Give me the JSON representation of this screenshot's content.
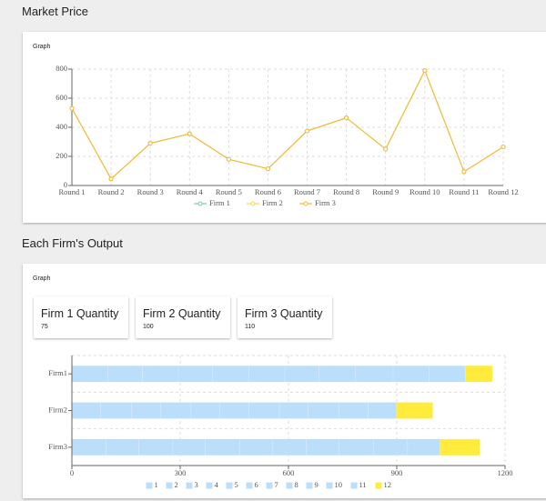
{
  "headings": [
    "Market Price",
    "Each Firm's Output"
  ],
  "graph_labels": [
    "Graph",
    "Graph"
  ],
  "quantity_cards": [
    {
      "title": "Firm 1 Quantity",
      "value": "75"
    },
    {
      "title": "Firm 2 Quantity",
      "value": "100"
    },
    {
      "title": "Firm 3 Quantity",
      "value": "110"
    }
  ],
  "chart_data": [
    {
      "type": "line",
      "categories": [
        "Round 1",
        "Round 2",
        "Round 3",
        "Round 4",
        "Round 5",
        "Round 6",
        "Round 7",
        "Round 8",
        "Round 9",
        "Round 10",
        "Round 11",
        "Round 12"
      ],
      "series": [
        {
          "name": "Firm 1",
          "color": "#82ca9d",
          "values": [
            530,
            45,
            290,
            355,
            180,
            115,
            375,
            465,
            250,
            790,
            95,
            265
          ]
        },
        {
          "name": "Firm 2",
          "color": "#ffd54f",
          "values": [
            530,
            45,
            290,
            355,
            180,
            115,
            375,
            465,
            250,
            790,
            95,
            265
          ]
        },
        {
          "name": "Firm 3",
          "color": "#f5b731",
          "values": [
            530,
            45,
            290,
            355,
            180,
            115,
            375,
            465,
            250,
            790,
            95,
            265
          ]
        }
      ],
      "ylim": [
        0,
        800
      ],
      "yticks": [
        0,
        200,
        400,
        600,
        800
      ],
      "grid": true
    },
    {
      "type": "stacked_bar_horizontal",
      "categories": [
        "Firm1",
        "Firm2",
        "Firm3"
      ],
      "series": [
        {
          "name": "1",
          "color": "#bbdefb",
          "values": [
            100,
            80,
            95
          ]
        },
        {
          "name": "2",
          "color": "#bbdefb",
          "values": [
            95,
            85,
            90
          ]
        },
        {
          "name": "3",
          "color": "#bbdefb",
          "values": [
            100,
            80,
            95
          ]
        },
        {
          "name": "4",
          "color": "#bbdefb",
          "values": [
            95,
            85,
            90
          ]
        },
        {
          "name": "5",
          "color": "#bbdefb",
          "values": [
            100,
            80,
            95
          ]
        },
        {
          "name": "6",
          "color": "#bbdefb",
          "values": [
            100,
            80,
            90
          ]
        },
        {
          "name": "7",
          "color": "#bbdefb",
          "values": [
            95,
            85,
            95
          ]
        },
        {
          "name": "8",
          "color": "#bbdefb",
          "values": [
            100,
            80,
            90
          ]
        },
        {
          "name": "9",
          "color": "#bbdefb",
          "values": [
            105,
            85,
            95
          ]
        },
        {
          "name": "10",
          "color": "#bbdefb",
          "values": [
            100,
            80,
            95
          ]
        },
        {
          "name": "11",
          "color": "#bbdefb",
          "values": [
            100,
            80,
            90
          ]
        },
        {
          "name": "12",
          "color": "#ffeb3b",
          "values": [
            75,
            100,
            110
          ]
        }
      ],
      "xlim": [
        0,
        1200
      ],
      "xticks": [
        0,
        300,
        600,
        900,
        1200
      ],
      "grid": true
    }
  ]
}
